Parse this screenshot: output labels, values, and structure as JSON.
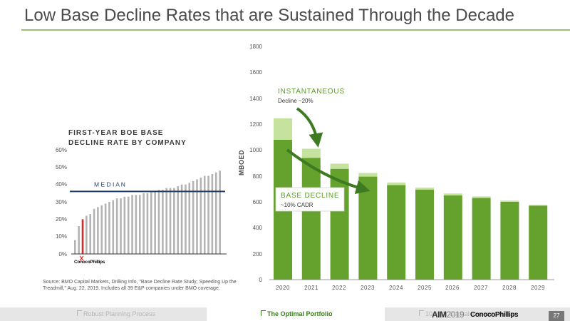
{
  "title": "Low Base Decline Rates that are Sustained Through the Decade",
  "source_note": "Source: BMO Capital Markets, Drilling Info, \"Base Decline Rate Study; Speeding Up the Treadmill,\" Aug. 22, 2019. Includes all 39 E&P companies under BMO coverage.",
  "nav": {
    "items": [
      "Robust Planning Process",
      "The Optimal Portfolio",
      "10-Year Capital Investment Plan"
    ],
    "active_index": 1
  },
  "footer": {
    "am_label": "AIM",
    "am_year": "2019",
    "brand": "ConocoPhillips",
    "page": "27"
  },
  "colors": {
    "green_dark": "#65a12d",
    "green_light": "#c5e39f",
    "navy": "#1f3a5f",
    "red": "#e02626",
    "gray_bar": "#b3b3b3",
    "title_rule": "#9dbf72"
  },
  "chart_data": [
    {
      "type": "bar",
      "title_lines": [
        "FIRST-YEAR BOE BASE",
        "DECLINE RATE BY COMPANY"
      ],
      "yticks": [
        "60%",
        "50%",
        "40%",
        "30%",
        "20%",
        "10%",
        "0%"
      ],
      "ylim": [
        0,
        60
      ],
      "values": [
        8,
        16,
        20,
        22,
        23,
        26,
        27,
        28,
        29,
        30,
        31,
        32,
        32,
        33,
        33,
        34,
        34,
        34,
        35,
        35,
        36,
        36,
        37,
        37,
        38,
        38,
        38,
        39,
        40,
        40,
        41,
        42,
        43,
        44,
        45,
        45,
        46,
        47,
        48
      ],
      "highlight_index": 2,
      "highlight_label": "ConocoPhillips",
      "median": 36,
      "median_label": "M E D I A N"
    },
    {
      "type": "stacked-bar",
      "ylabel": "MBOED",
      "yticks": [
        1800,
        1600,
        1400,
        1200,
        1000,
        800,
        600,
        400,
        200,
        0
      ],
      "ylim": [
        0,
        1800
      ],
      "categories": [
        "2020",
        "2021",
        "2022",
        "2023",
        "2024",
        "2025",
        "2026",
        "2027",
        "2028",
        "2029"
      ],
      "series": [
        {
          "values": [
            1080,
            940,
            855,
            795,
            730,
            695,
            650,
            630,
            600,
            570
          ]
        },
        {
          "values": [
            165,
            70,
            40,
            28,
            20,
            15,
            15,
            12,
            10,
            8
          ]
        }
      ],
      "annotations": {
        "instantaneous_title": "INSTANTANEOUS",
        "instantaneous_text": "Decline ~20%",
        "base_title": "BASE DECLINE",
        "base_text": "~10% CADR"
      }
    }
  ]
}
